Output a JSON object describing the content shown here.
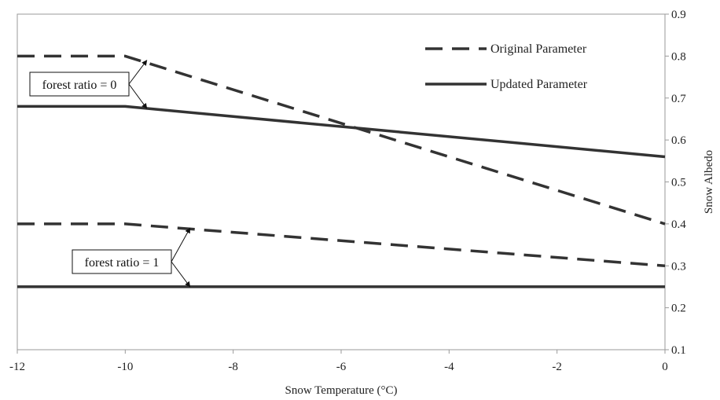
{
  "chart_data": {
    "type": "line",
    "title": "",
    "xlabel": "Snow Temperature (°C)",
    "ylabel": "Snow Albedo",
    "xlim": [
      -12,
      0
    ],
    "ylim": [
      0.1,
      0.9
    ],
    "x_ticks": [
      -12,
      -10,
      -8,
      -6,
      -4,
      -2,
      0
    ],
    "y_ticks": [
      0.1,
      0.2,
      0.3,
      0.4,
      0.5,
      0.6,
      0.7,
      0.8,
      0.9
    ],
    "x_tick_labels": [
      "-12",
      "-10",
      "-8",
      "-6",
      "-4",
      "-2",
      "0"
    ],
    "y_tick_labels": [
      "0.1",
      "0.2",
      "0.3",
      "0.4",
      "0.5",
      "0.6",
      "0.7",
      "0.8",
      "0.9"
    ],
    "y_axis_side": "right",
    "grid": false,
    "legend_position": "top-right",
    "colors": {
      "line": "#333333"
    },
    "series": [
      {
        "name": "Original Parameter",
        "style": "dashed",
        "x": [
          -12,
          -10,
          0
        ],
        "y": [
          0.8,
          0.8,
          0.4
        ]
      },
      {
        "name": "Updated Parameter",
        "style": "solid",
        "x": [
          -12,
          -10,
          0
        ],
        "y": [
          0.68,
          0.68,
          0.56
        ]
      },
      {
        "style": "dashed",
        "x": [
          -12,
          -10,
          0
        ],
        "y": [
          0.4,
          0.4,
          0.3
        ]
      },
      {
        "style": "solid",
        "x": [
          -12,
          0
        ],
        "y": [
          0.25,
          0.25
        ]
      }
    ],
    "annotations": [
      {
        "text": "forest ratio = 0",
        "targets": [
          [
            -9.6,
            0.79
          ],
          [
            -9.6,
            0.675
          ]
        ]
      },
      {
        "text": "forest ratio = 1",
        "targets": [
          [
            -8.8,
            0.39
          ],
          [
            -8.8,
            0.25
          ]
        ]
      }
    ]
  }
}
